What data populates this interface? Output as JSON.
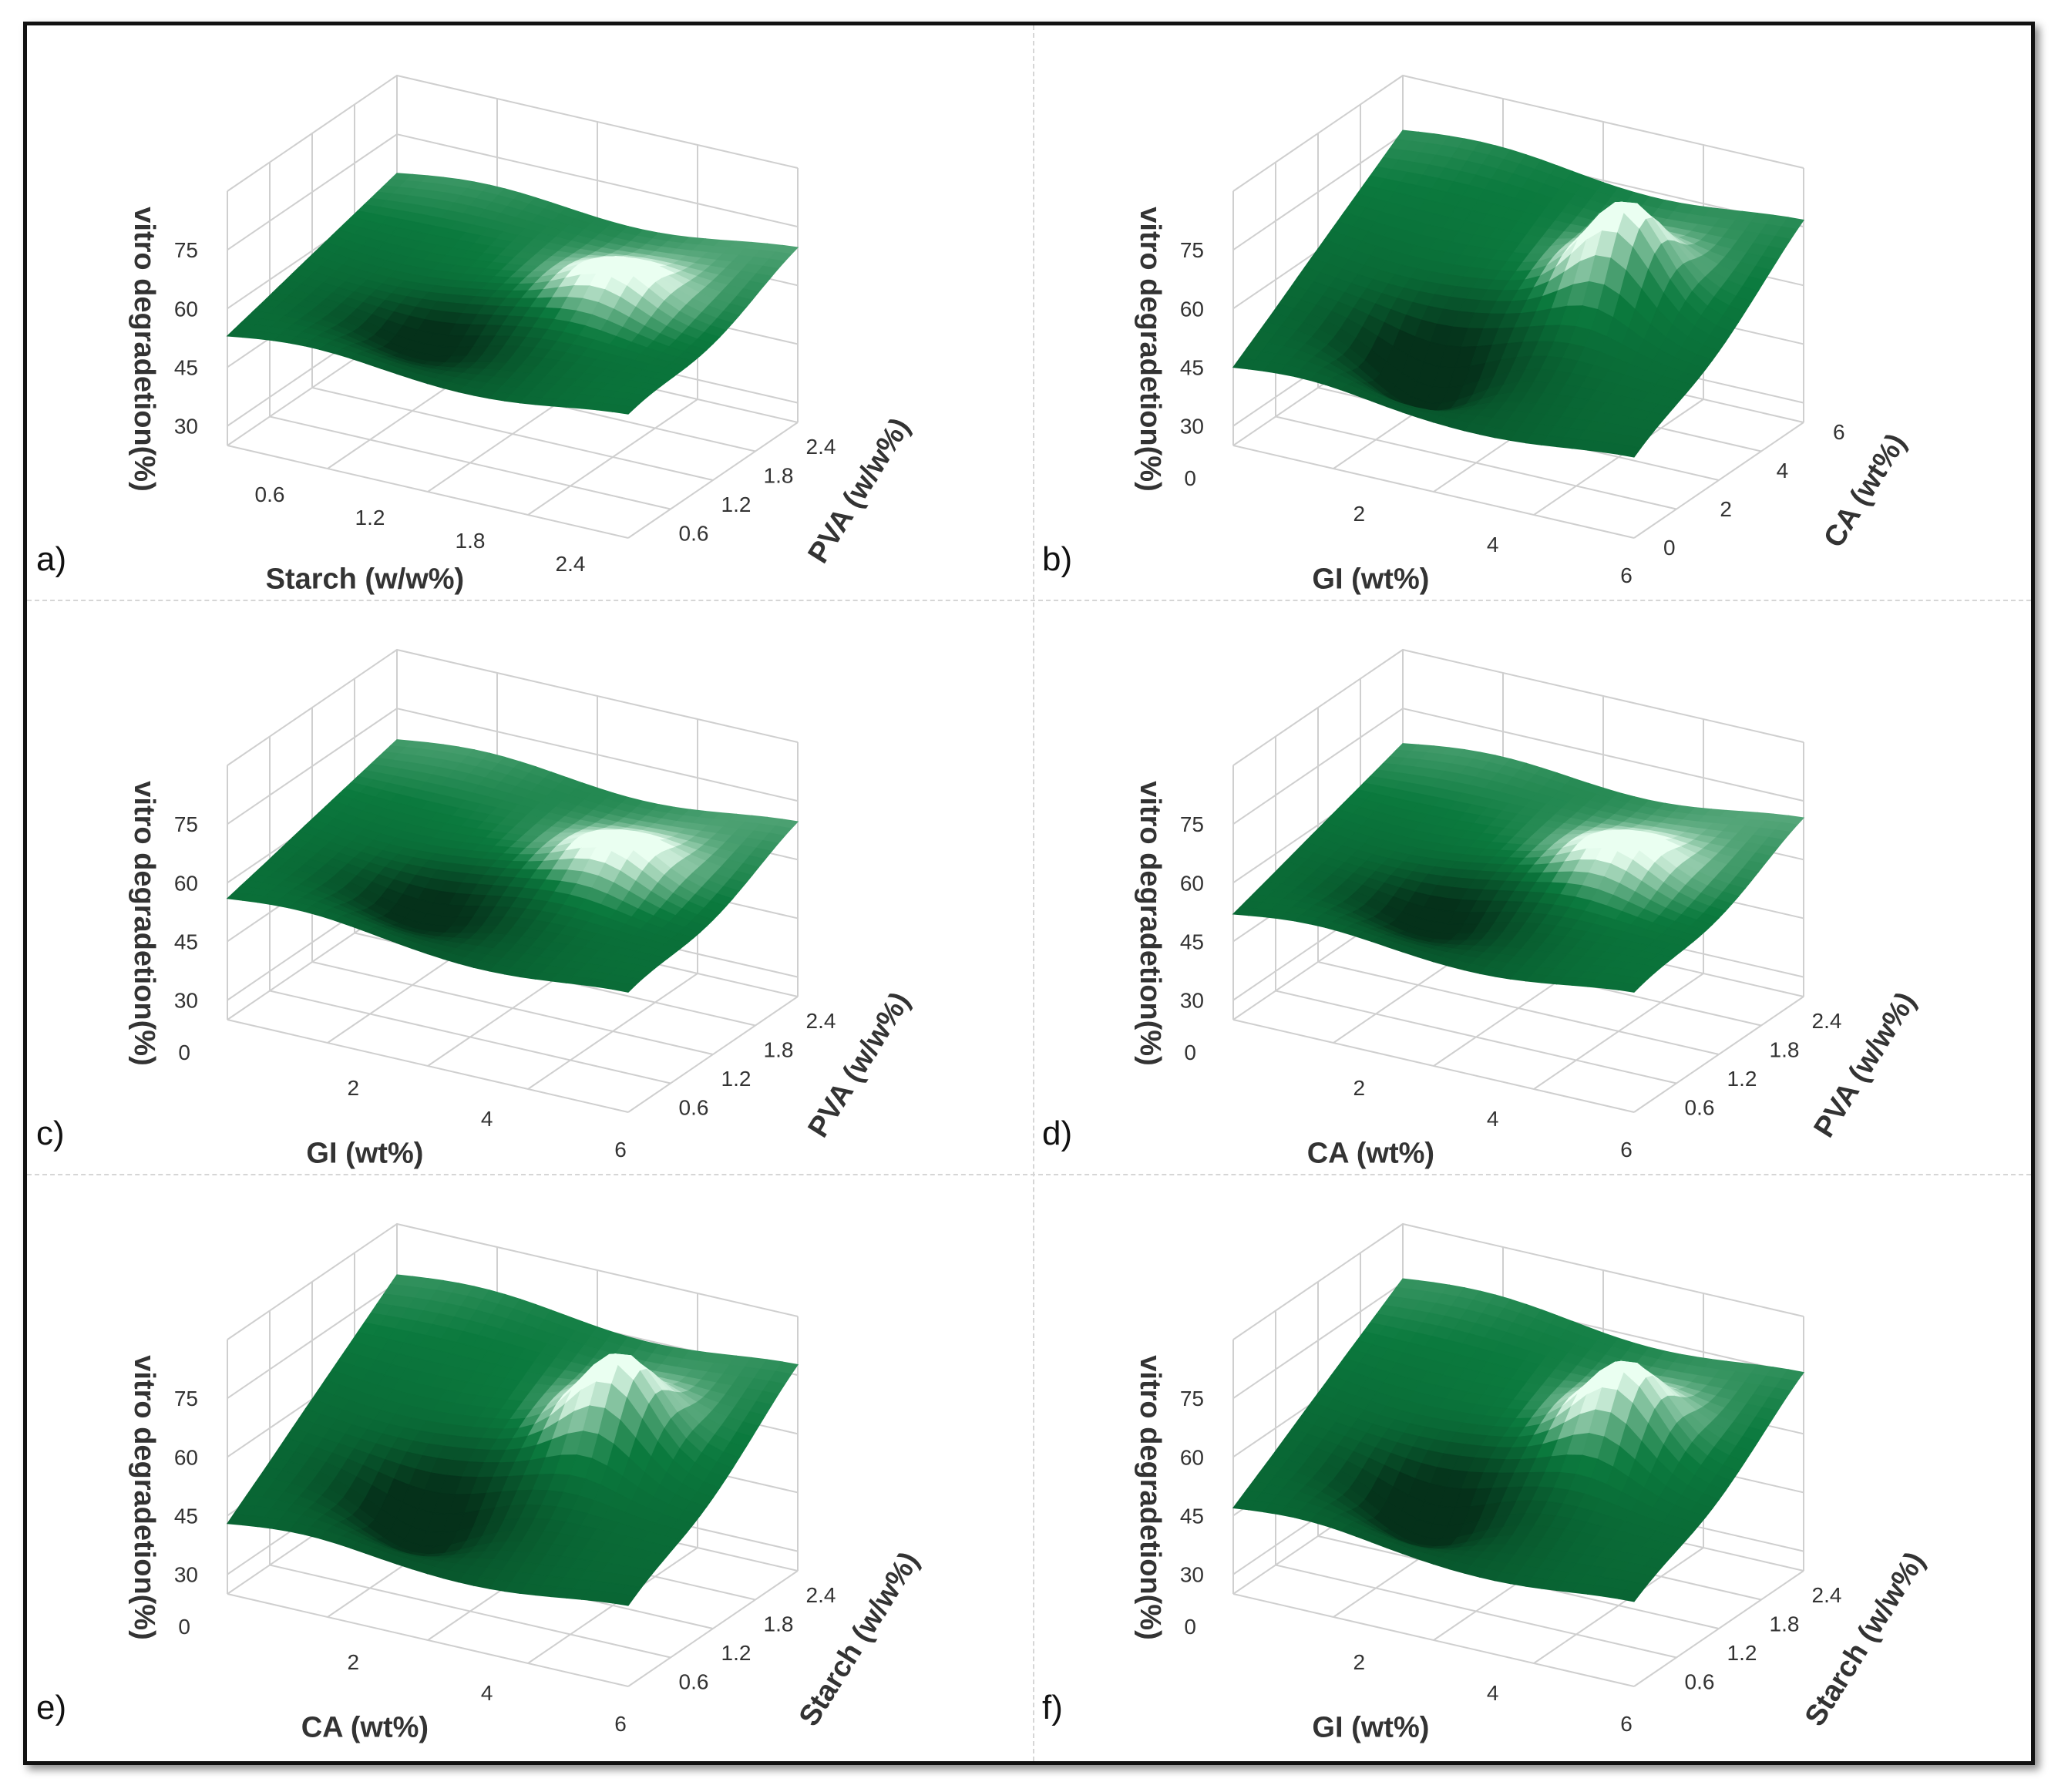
{
  "figure": {
    "panel_labels": [
      "a)",
      "b)",
      "c)",
      "d)",
      "e)",
      "f)"
    ]
  },
  "colors": {
    "surface_dark": "#05311a",
    "surface_mid": "#0b7a3e",
    "surface_light": "#eafff1",
    "grid": "#cfcfcf",
    "axis_text": "#333333"
  },
  "chart_data": [
    {
      "type": "surface3d",
      "panel": "a)",
      "zlabel": "vitro degradetion(%)",
      "xlabel": "Starch (w/w%)",
      "ylabel": "PVA (w/w%)",
      "zticks": [
        "75",
        "60",
        "45",
        "30"
      ],
      "xticks": [
        "0.6",
        "1.2",
        "1.8",
        "2.4"
      ],
      "yticks": [
        "0.6",
        "1.2",
        "1.8",
        "2.4"
      ],
      "zlim": [
        25,
        90
      ],
      "xlim": [
        0.3,
        2.7
      ],
      "ylim": [
        0.3,
        2.7
      ],
      "corner_values": {
        "x_min_y_min": 53,
        "x_max_y_min": 55,
        "x_min_y_max": 65,
        "x_max_y_max": 68
      },
      "peak_value": 70,
      "valley_value": 49
    },
    {
      "type": "surface3d",
      "panel": "b)",
      "zlabel": "vitro degradetion(%)",
      "xlabel": "GI (wt%)",
      "ylabel": "CA (wt%)",
      "zticks": [
        "75",
        "60",
        "45",
        "30",
        "0"
      ],
      "xticks": [
        "2",
        "4",
        "6"
      ],
      "yticks": [
        "0",
        "2",
        "4",
        "6"
      ],
      "zlim": [
        25,
        90
      ],
      "xlim": [
        0,
        6
      ],
      "ylim": [
        0,
        6
      ],
      "corner_values": {
        "x_min_y_min": 45,
        "x_max_y_min": 44,
        "x_min_y_max": 76,
        "x_max_y_max": 75
      },
      "peak_value": 85,
      "valley_value": 34
    },
    {
      "type": "surface3d",
      "panel": "c)",
      "zlabel": "vitro degradetion(%)",
      "xlabel": "GI (wt%)",
      "ylabel": "PVA (w/w%)",
      "zticks": [
        "75",
        "60",
        "45",
        "30",
        "0"
      ],
      "xticks": [
        "2",
        "4",
        "6"
      ],
      "yticks": [
        "0.6",
        "1.2",
        "1.8",
        "2.4"
      ],
      "zlim": [
        25,
        90
      ],
      "xlim": [
        0,
        6
      ],
      "ylim": [
        0.3,
        2.7
      ],
      "corner_values": {
        "x_min_y_min": 56,
        "x_max_y_min": 54,
        "x_min_y_max": 67,
        "x_max_y_max": 68
      },
      "peak_value": 70,
      "valley_value": 50
    },
    {
      "type": "surface3d",
      "panel": "d)",
      "zlabel": "vitro degradetion(%)",
      "xlabel": "CA (wt%)",
      "ylabel": "PVA (w/w%)",
      "zticks": [
        "75",
        "60",
        "45",
        "30",
        "0"
      ],
      "xticks": [
        "2",
        "4",
        "6"
      ],
      "yticks": [
        "0.6",
        "1.2",
        "1.8",
        "2.4"
      ],
      "zlim": [
        25,
        90
      ],
      "xlim": [
        0,
        6
      ],
      "ylim": [
        0.3,
        2.7
      ],
      "corner_values": {
        "x_min_y_min": 52,
        "x_max_y_min": 54,
        "x_min_y_max": 66,
        "x_max_y_max": 69
      },
      "peak_value": 70,
      "valley_value": 48
    },
    {
      "type": "surface3d",
      "panel": "e)",
      "zlabel": "vitro degradetion(%)",
      "xlabel": "CA (wt%)",
      "ylabel": "Starch (w/w%)",
      "zticks": [
        "75",
        "60",
        "45",
        "30",
        "0"
      ],
      "xticks": [
        "2",
        "4",
        "6"
      ],
      "yticks": [
        "0.6",
        "1.2",
        "1.8",
        "2.4"
      ],
      "zlim": [
        25,
        90
      ],
      "xlim": [
        0,
        6
      ],
      "ylim": [
        0.3,
        2.7
      ],
      "corner_values": {
        "x_min_y_min": 43,
        "x_max_y_min": 44,
        "x_min_y_max": 77,
        "x_max_y_max": 76
      },
      "peak_value": 84,
      "valley_value": 36
    },
    {
      "type": "surface3d",
      "panel": "f)",
      "zlabel": "vitro degradetion(%)",
      "xlabel": "GI (wt%)",
      "ylabel": "Starch (w/w%)",
      "zticks": [
        "75",
        "60",
        "45",
        "30",
        "0"
      ],
      "xticks": [
        "2",
        "4",
        "6"
      ],
      "yticks": [
        "0.6",
        "1.2",
        "1.8",
        "2.4"
      ],
      "zlim": [
        25,
        90
      ],
      "xlim": [
        0,
        6
      ],
      "ylim": [
        0.3,
        2.7
      ],
      "corner_values": {
        "x_min_y_min": 47,
        "x_max_y_min": 45,
        "x_min_y_max": 76,
        "x_max_y_max": 74
      },
      "peak_value": 82,
      "valley_value": 38
    }
  ]
}
